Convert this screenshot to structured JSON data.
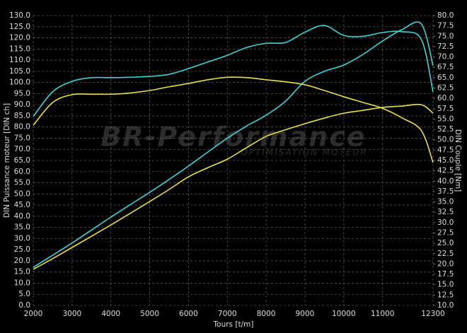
{
  "chart_data": {
    "type": "line",
    "watermark": "BR-Performance",
    "watermark_subtitle": "Optimisation moteur",
    "x_label": "Tours [t/m]",
    "y_label": "DIN Puissance moteur [DIN ch]",
    "y2_label": "DIN Couple [Nm]",
    "x": [
      2000,
      2500,
      3000,
      3500,
      4000,
      4500,
      5000,
      5500,
      6000,
      6500,
      7000,
      7500,
      8000,
      8500,
      9000,
      9500,
      10000,
      10500,
      11000,
      11500,
      12000,
      12300
    ],
    "series": [
      {
        "color": "#3fd3d8",
        "values": [
          17.1,
          22.5,
          28,
          33.8,
          39.6,
          45.2,
          50.7,
          56.5,
          62.5,
          68.8,
          75,
          80.5,
          85.3,
          91.6,
          100.5,
          105,
          107.8,
          112.6,
          118.6,
          123.7,
          126.2,
          107.5
        ]
      },
      {
        "color": "#3fd3d8",
        "axis": "y2",
        "values": [
          55.6,
          61.6,
          64.1,
          65,
          65,
          65.1,
          65.3,
          65.8,
          67.2,
          68.8,
          70.4,
          72.3,
          73.3,
          73.5,
          76,
          77.6,
          75.2,
          75,
          75.9,
          76.1,
          74.2,
          61.6
        ]
      },
      {
        "color": "#e8e04a",
        "values": [
          16.2,
          21,
          26,
          31,
          36.1,
          41.3,
          46.6,
          52,
          57.7,
          61.8,
          65.6,
          70.8,
          75.8,
          78.8,
          81.5,
          84,
          86.2,
          87.5,
          88.8,
          89.4,
          90,
          86.2
        ]
      },
      {
        "color": "#e8e04a",
        "axis": "y2",
        "values": [
          53.5,
          59,
          60.9,
          61,
          61,
          61.3,
          61.9,
          62.8,
          63.6,
          64.5,
          65.1,
          65,
          64.5,
          64,
          63.3,
          61.9,
          60.4,
          59,
          57.6,
          55.3,
          52.2,
          44.5
        ]
      }
    ],
    "xlim": [
      2000,
      12300
    ],
    "xticks": [
      2000,
      3000,
      4000,
      5000,
      6000,
      7000,
      8000,
      9000,
      10000,
      11000,
      12300
    ],
    "ylim": [
      0,
      130
    ],
    "yticks": [
      {
        "value": 0,
        "label": "0.0"
      },
      {
        "value": 5,
        "label": "5.0"
      },
      {
        "value": 10,
        "label": "10.0"
      },
      {
        "value": 15,
        "label": "15.0"
      },
      {
        "value": 20,
        "label": "20.0"
      },
      {
        "value": 25,
        "label": "25.0"
      },
      {
        "value": 30,
        "label": "30.0"
      },
      {
        "value": 35,
        "label": "35.0"
      },
      {
        "value": 40,
        "label": "40.0"
      },
      {
        "value": 45,
        "label": "45.0"
      },
      {
        "value": 50,
        "label": "50.0"
      },
      {
        "value": 55,
        "label": "55.0"
      },
      {
        "value": 60,
        "label": "60.0"
      },
      {
        "value": 65,
        "label": "65.0"
      },
      {
        "value": 70,
        "label": "70.0"
      },
      {
        "value": 75,
        "label": "75.0"
      },
      {
        "value": 80,
        "label": "80.0"
      },
      {
        "value": 85,
        "label": "85.0"
      },
      {
        "value": 90,
        "label": "90.0"
      },
      {
        "value": 95,
        "label": "95.0"
      },
      {
        "value": 100,
        "label": "100.0"
      },
      {
        "value": 105,
        "label": "105.0"
      },
      {
        "value": 110,
        "label": "110.0"
      },
      {
        "value": 115,
        "label": "115.0"
      },
      {
        "value": 120,
        "label": "120.0"
      },
      {
        "value": 125,
        "label": "125.0"
      },
      {
        "value": 130,
        "label": "130.0"
      }
    ],
    "y2lim": [
      10,
      80
    ],
    "y2ticks": [
      {
        "value": 10,
        "label": "10.0"
      },
      {
        "value": 12.5,
        "label": "12.5"
      },
      {
        "value": 15,
        "label": "15.0"
      },
      {
        "value": 17.5,
        "label": "17.5"
      },
      {
        "value": 20,
        "label": "20.0"
      },
      {
        "value": 22.5,
        "label": "22.5"
      },
      {
        "value": 25,
        "label": "25.0"
      },
      {
        "value": 27.5,
        "label": "27.5"
      },
      {
        "value": 30,
        "label": "30.0"
      },
      {
        "value": 32.5,
        "label": "32.5"
      },
      {
        "value": 35,
        "label": "35.0"
      },
      {
        "value": 37.5,
        "label": "37.5"
      },
      {
        "value": 40,
        "label": "40.0"
      },
      {
        "value": 42.5,
        "label": "42.5"
      },
      {
        "value": 45,
        "label": "45.0"
      },
      {
        "value": 47.5,
        "label": "47.5"
      },
      {
        "value": 50,
        "label": "50.0"
      },
      {
        "value": 52.5,
        "label": "52.5"
      },
      {
        "value": 55,
        "label": "55.0"
      },
      {
        "value": 57.5,
        "label": "57.5"
      },
      {
        "value": 60,
        "label": "60.0"
      },
      {
        "value": 62.5,
        "label": "62.5"
      },
      {
        "value": 65,
        "label": "65.0"
      },
      {
        "value": 67.5,
        "label": "67.5"
      },
      {
        "value": 70,
        "label": "70.0"
      },
      {
        "value": 72.5,
        "label": "72.5"
      },
      {
        "value": 75,
        "label": "75.0"
      },
      {
        "value": 77.5,
        "label": "77.5"
      },
      {
        "value": 80,
        "label": "80.0"
      }
    ],
    "grid": true
  }
}
